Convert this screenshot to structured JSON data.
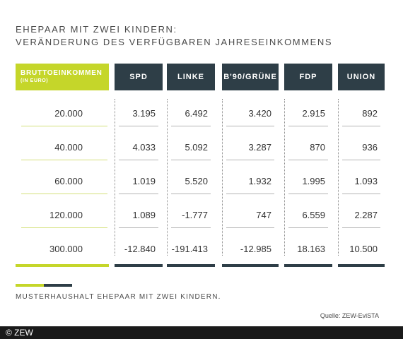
{
  "title": {
    "line1": "EHEPAAR MIT ZWEI KINDERN:",
    "line2": "VERÄNDERUNG DES VERFÜGBAREN JAHRESEINKOMMENS"
  },
  "table": {
    "lead_header": {
      "line1": "BRUTTOEINKOMMEN",
      "line2": "(IN EURO)"
    },
    "columns": [
      "SPD",
      "LINKE",
      "B'90/GRÜNE",
      "FDP",
      "UNION"
    ],
    "rows": [
      {
        "income": "20.000",
        "values": [
          "3.195",
          "6.492",
          "3.420",
          "2.915",
          "892"
        ]
      },
      {
        "income": "40.000",
        "values": [
          "4.033",
          "5.092",
          "3.287",
          "870",
          "936"
        ]
      },
      {
        "income": "60.000",
        "values": [
          "1.019",
          "5.520",
          "1.932",
          "1.995",
          "1.093"
        ]
      },
      {
        "income": "120.000",
        "values": [
          "1.089",
          "-1.777",
          "747",
          "6.559",
          "2.287"
        ]
      },
      {
        "income": "300.000",
        "values": [
          "-12.840",
          "-191.413",
          "-12.985",
          "18.163",
          "10.500"
        ]
      }
    ]
  },
  "note": "MUSTERHAUSHALT EHEPAAR MIT ZWEI KINDERN.",
  "source": "Quelle: ZEW-EviSTA",
  "footer": "© ZEW",
  "colors": {
    "accent_green": "#c5d62a",
    "header_dark": "#2e3e47"
  },
  "chart_data": {
    "type": "table",
    "title": "EHEPAAR MIT ZWEI KINDERN: VERÄNDERUNG DES VERFÜGBAREN JAHRESEINKOMMENS",
    "row_header": "BRUTTOEINKOMMEN (IN EURO)",
    "categories": [
      "20.000",
      "40.000",
      "60.000",
      "120.000",
      "300.000"
    ],
    "series": [
      {
        "name": "SPD",
        "values": [
          3195,
          4033,
          1019,
          1089,
          -12840
        ]
      },
      {
        "name": "LINKE",
        "values": [
          6492,
          5092,
          5520,
          -1777,
          -191413
        ]
      },
      {
        "name": "B'90/GRÜNE",
        "values": [
          3420,
          3287,
          1932,
          747,
          -12985
        ]
      },
      {
        "name": "FDP",
        "values": [
          2915,
          870,
          1995,
          6559,
          18163
        ]
      },
      {
        "name": "UNION",
        "values": [
          892,
          936,
          1093,
          2287,
          10500
        ]
      }
    ]
  }
}
